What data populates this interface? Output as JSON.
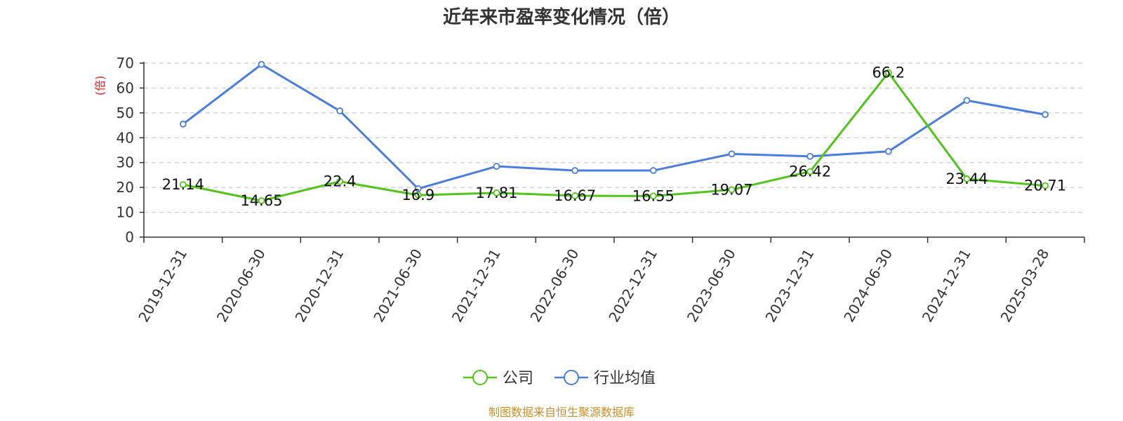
{
  "chart_data": {
    "type": "line",
    "title": "近年来市盈率变化情况（倍）",
    "ylabel": "(倍)",
    "xlabel": "",
    "ylim": [
      0,
      70
    ],
    "yticks": [
      0,
      10,
      20,
      30,
      40,
      50,
      60,
      70
    ],
    "grid": true,
    "legend_position": "bottom",
    "categories": [
      "2019-12-31",
      "2020-06-30",
      "2020-12-31",
      "2021-06-30",
      "2021-12-31",
      "2022-06-30",
      "2022-12-31",
      "2023-06-30",
      "2023-12-31",
      "2024-06-30",
      "2024-12-31",
      "2025-03-28"
    ],
    "series": [
      {
        "name": "公司",
        "color": "#52c41a",
        "values": [
          21.14,
          14.65,
          22.4,
          16.9,
          17.81,
          16.67,
          16.55,
          19.07,
          26.42,
          66.2,
          23.44,
          20.71
        ],
        "labels": [
          "21.14",
          "14.65",
          "22.4",
          "16.9",
          "17.81",
          "16.67",
          "16.55",
          "19.07",
          "26.42",
          "66.2",
          "23.44",
          "20.71"
        ]
      },
      {
        "name": "行业均值",
        "color": "#4a7ddd",
        "values": [
          45.5,
          69.5,
          50.8,
          19.5,
          28.5,
          26.8,
          26.8,
          33.5,
          32.5,
          34.5,
          55.0,
          49.3
        ]
      }
    ],
    "source": "制图数据来自恒生聚源数据库",
    "ylabel_color": "#e02020",
    "source_color": "#c8902a"
  }
}
